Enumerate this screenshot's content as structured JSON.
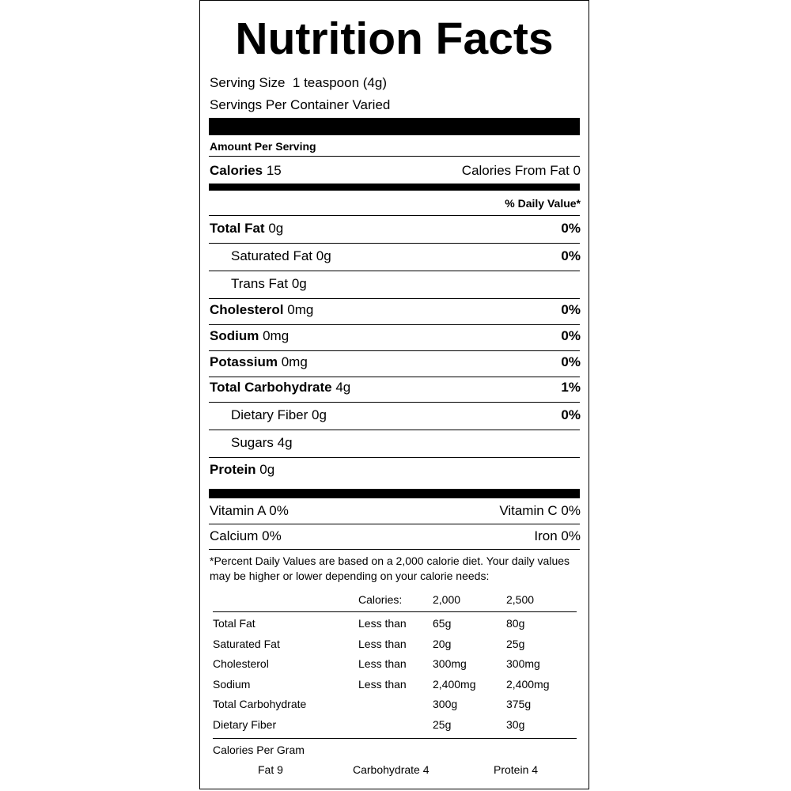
{
  "title": "Nutrition Facts",
  "serving_size": {
    "label": "Serving Size",
    "value": "1 teaspoon (4g)"
  },
  "servings_per_container": "Servings Per Container Varied",
  "amount_per_serving": "Amount Per Serving",
  "calories": {
    "label": "Calories",
    "value": "15"
  },
  "calories_from_fat": "Calories From Fat 0",
  "daily_value_header": "% Daily Value*",
  "nutrients": [
    {
      "name": "Total Fat",
      "amount": "0g",
      "daily_value": "0%"
    },
    {
      "name": "Saturated Fat",
      "amount": "0g",
      "daily_value": "0%"
    },
    {
      "name": "Trans Fat",
      "amount": "0g"
    },
    {
      "name": "Cholesterol",
      "amount": "0mg",
      "daily_value": "0%"
    },
    {
      "name": "Sodium",
      "amount": "0mg",
      "daily_value": "0%"
    },
    {
      "name": "Potassium",
      "amount": "0mg",
      "daily_value": "0%"
    },
    {
      "name": "Total Carbohydrate",
      "amount": "4g",
      "daily_value": "1%"
    },
    {
      "name": "Dietary Fiber",
      "amount": "0g",
      "daily_value": "0%"
    },
    {
      "name": "Sugars",
      "amount": "4g"
    },
    {
      "name": "Protein",
      "amount": "0g"
    }
  ],
  "vitamins": [
    [
      "Vitamin A 0%",
      "Vitamin C 0%"
    ],
    [
      "Calcium 0%",
      "Iron 0%"
    ]
  ],
  "footnote": "*Percent Daily Values are based on a 2,000 calorie diet. Your daily values may be higher or lower depending on your calorie needs:",
  "daily_values_table": {
    "header": [
      "Calories:",
      "2,000",
      "2,500"
    ],
    "rows": [
      {
        "nutrient": "Total Fat",
        "limit": "Less than",
        "values": [
          "65g",
          "80g"
        ]
      },
      {
        "nutrient": "Saturated Fat",
        "limit": "Less than",
        "values": [
          "20g",
          "25g"
        ]
      },
      {
        "nutrient": "Cholesterol",
        "limit": "Less than",
        "values": [
          "300mg",
          "300mg"
        ]
      },
      {
        "nutrient": "Sodium",
        "limit": "Less than",
        "values": [
          "2,400mg",
          "2,400mg"
        ]
      },
      {
        "nutrient": "Total Carbohydrate",
        "values": [
          "300g",
          "375g"
        ]
      },
      {
        "nutrient": "Dietary Fiber",
        "values": [
          "25g",
          "30g"
        ]
      }
    ]
  },
  "calories_per_gram": {
    "label": "Calories Per Gram",
    "items": [
      "Fat 9",
      "Carbohydrate 4",
      "Protein 4"
    ]
  }
}
